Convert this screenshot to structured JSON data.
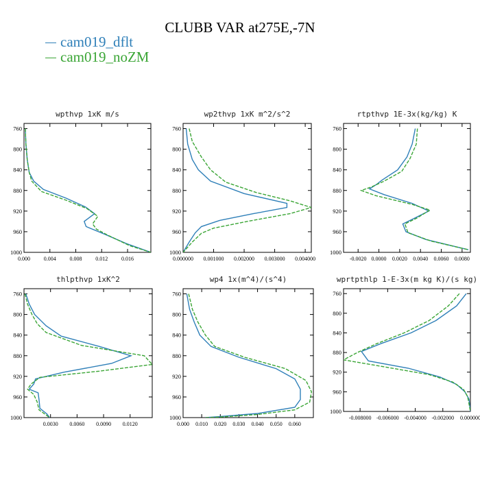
{
  "title": "CLUBB VAR at275E,-7N",
  "legend": [
    {
      "name": "cam019_dflt",
      "color": "#2e7fb8"
    },
    {
      "name": "cam019_noZM",
      "color": "#3aa535"
    }
  ],
  "chart_data": [
    {
      "type": "line",
      "title": "wpthvp  1xK m/s",
      "ylim": [
        1000,
        750
      ],
      "yticks": [
        760,
        800,
        840,
        880,
        920,
        960,
        1000
      ],
      "xlim": [
        0,
        0.0196
      ],
      "xticks": [
        0,
        0.004,
        0.008,
        0.012,
        0.016
      ],
      "xticklabels": [
        "0.000",
        "0.004",
        "0.008",
        "0.012",
        "0.016"
      ],
      "series": [
        {
          "name": "cam019_dflt",
          "points": [
            [
              0.0002,
              760
            ],
            [
              0.0003,
              790
            ],
            [
              0.0005,
              820
            ],
            [
              0.0008,
              845
            ],
            [
              0.0015,
              862
            ],
            [
              0.003,
              878
            ],
            [
              0.0065,
              895
            ],
            [
              0.0095,
              912
            ],
            [
              0.0109,
              925
            ],
            [
              0.0093,
              940
            ],
            [
              0.0096,
              950
            ],
            [
              0.0125,
              965
            ],
            [
              0.0158,
              983
            ],
            [
              0.0196,
              1000
            ]
          ]
        },
        {
          "name": "cam019_noZM",
          "points": [
            [
              0.0002,
              760
            ],
            [
              0.0003,
              790
            ],
            [
              0.0005,
              820
            ],
            [
              0.0008,
              845
            ],
            [
              0.0012,
              862
            ],
            [
              0.0027,
              882
            ],
            [
              0.0065,
              899
            ],
            [
              0.0097,
              915
            ],
            [
              0.0114,
              930
            ],
            [
              0.0106,
              945
            ],
            [
              0.0112,
              955
            ],
            [
              0.013,
              967
            ],
            [
              0.0163,
              987
            ],
            [
              0.0196,
              1000
            ]
          ]
        }
      ]
    },
    {
      "type": "line",
      "title": "wp2thvp  1xK m^2/s^2",
      "ylim": [
        1000,
        750
      ],
      "yticks": [
        760,
        800,
        840,
        880,
        920,
        960,
        1000
      ],
      "xlim": [
        0,
        0.0042
      ],
      "xticks": [
        0,
        0.001,
        0.002,
        0.003,
        0.004
      ],
      "xticklabels": [
        "0.000000",
        "0.001000",
        "0.002000",
        "0.003000",
        "0.004000"
      ],
      "series": [
        {
          "name": "cam019_dflt",
          "points": [
            [
              0.0001,
              760
            ],
            [
              0.00015,
              790
            ],
            [
              0.0003,
              820
            ],
            [
              0.0005,
              840
            ],
            [
              0.0009,
              862
            ],
            [
              0.002,
              886
            ],
            [
              0.0034,
              905
            ],
            [
              0.0034,
              913
            ],
            [
              0.0023,
              925
            ],
            [
              0.0012,
              938
            ],
            [
              0.0006,
              950
            ],
            [
              0.0004,
              962
            ],
            [
              0.0002,
              980
            ],
            [
              0,
              1000
            ]
          ]
        },
        {
          "name": "cam019_noZM",
          "points": [
            [
              0.0002,
              760
            ],
            [
              0.0003,
              785
            ],
            [
              0.0006,
              815
            ],
            [
              0.0009,
              840
            ],
            [
              0.0014,
              864
            ],
            [
              0.0024,
              884
            ],
            [
              0.0035,
              900
            ],
            [
              0.0042,
              913
            ],
            [
              0.0035,
              925
            ],
            [
              0.0021,
              940
            ],
            [
              0.001,
              953
            ],
            [
              0.0006,
              963
            ],
            [
              0.0003,
              980
            ],
            [
              0,
              1000
            ]
          ]
        }
      ]
    },
    {
      "type": "line",
      "title": "rtpthvp  1E-3x(kg/kg) K",
      "ylim": [
        1000,
        750
      ],
      "yticks": [
        760,
        800,
        840,
        880,
        920,
        960,
        1000
      ],
      "xlim": [
        -0.0034,
        0.0088
      ],
      "xticks": [
        -0.002,
        0,
        0.002,
        0.004,
        0.006,
        0.008
      ],
      "xticklabels": [
        "-0.0020",
        "0.0000",
        "0.0020",
        "0.0040",
        "0.0060",
        "0.0080"
      ],
      "series": [
        {
          "name": "cam019_dflt",
          "points": [
            [
              0.0035,
              760
            ],
            [
              0.0032,
              790
            ],
            [
              0.0027,
              815
            ],
            [
              0.0018,
              840
            ],
            [
              0.0003,
              860
            ],
            [
              -0.0002,
              868
            ],
            [
              -0.0009,
              877
            ],
            [
              0.0005,
              888
            ],
            [
              0.0032,
              905
            ],
            [
              0.0048,
              920
            ],
            [
              0.0033,
              935
            ],
            [
              0.0023,
              945
            ],
            [
              0.0026,
              960
            ],
            [
              0.0045,
              975
            ],
            [
              0.0086,
              995
            ]
          ]
        },
        {
          "name": "cam019_noZM",
          "points": [
            [
              0.0037,
              760
            ],
            [
              0.0036,
              790
            ],
            [
              0.003,
              818
            ],
            [
              0.0022,
              843
            ],
            [
              0.0005,
              862
            ],
            [
              -0.0007,
              873
            ],
            [
              -0.0017,
              880
            ],
            [
              -0.0003,
              890
            ],
            [
              0.0032,
              907
            ],
            [
              0.0049,
              918
            ],
            [
              0.0037,
              933
            ],
            [
              0.0025,
              945
            ],
            [
              0.0028,
              962
            ],
            [
              0.005,
              978
            ],
            [
              0.0086,
              995
            ]
          ]
        }
      ]
    },
    {
      "type": "line",
      "title": "thlpthvp  1xK^2",
      "ylim": [
        1000,
        750
      ],
      "yticks": [
        760,
        800,
        840,
        880,
        920,
        960,
        1000
      ],
      "xlim": [
        0,
        0.0145
      ],
      "xticks": [
        0.003,
        0.006,
        0.009,
        0.012
      ],
      "xticklabels": [
        "0.0030",
        "0.0060",
        "0.0090",
        "0.0120"
      ],
      "series": [
        {
          "name": "cam019_dflt",
          "points": [
            [
              0.0002,
              760
            ],
            [
              0.0006,
              780
            ],
            [
              0.0012,
              800
            ],
            [
              0.0025,
              822
            ],
            [
              0.0042,
              842
            ],
            [
              0.0085,
              862
            ],
            [
              0.0121,
              880
            ],
            [
              0.0099,
              895
            ],
            [
              0.0045,
              912
            ],
            [
              0.0013,
              925
            ],
            [
              0.0011,
              935
            ],
            [
              0.0006,
              945
            ],
            [
              0.0016,
              952
            ],
            [
              0.0017,
              965
            ],
            [
              0.0018,
              982
            ],
            [
              0.0026,
              993
            ],
            [
              0.0029,
              1000
            ]
          ]
        },
        {
          "name": "cam019_noZM",
          "points": [
            [
              0.0001,
              760
            ],
            [
              0.0004,
              780
            ],
            [
              0.0009,
              800
            ],
            [
              0.0015,
              818
            ],
            [
              0.0025,
              835
            ],
            [
              0.0065,
              860
            ],
            [
              0.0136,
              880
            ],
            [
              0.0145,
              897
            ],
            [
              0.0085,
              910
            ],
            [
              0.0018,
              922
            ],
            [
              0.0008,
              935
            ],
            [
              0.0004,
              945
            ],
            [
              0.0011,
              955
            ],
            [
              0.0015,
              970
            ],
            [
              0.0017,
              985
            ],
            [
              0.0029,
              1000
            ]
          ]
        }
      ]
    },
    {
      "type": "line",
      "title": "wp4  1x(m^4)/(s^4)",
      "ylim": [
        1000,
        750
      ],
      "yticks": [
        760,
        800,
        840,
        880,
        920,
        960,
        1000
      ],
      "xlim": [
        0,
        0.07
      ],
      "xticks": [
        0,
        0.01,
        0.02,
        0.03,
        0.04,
        0.05,
        0.06
      ],
      "xticklabels": [
        "0.000",
        "0.010",
        "0.020",
        "0.030",
        "0.040",
        "0.050",
        "0.060"
      ],
      "series": [
        {
          "name": "cam019_dflt",
          "points": [
            [
              0.002,
              760
            ],
            [
              0.0035,
              790
            ],
            [
              0.006,
              815
            ],
            [
              0.009,
              840
            ],
            [
              0.015,
              862
            ],
            [
              0.03,
              883
            ],
            [
              0.05,
              905
            ],
            [
              0.06,
              925
            ],
            [
              0.063,
              945
            ],
            [
              0.063,
              965
            ],
            [
              0.06,
              980
            ],
            [
              0.04,
              992
            ],
            [
              0.02,
              998
            ],
            [
              0.012,
              1000
            ]
          ]
        },
        {
          "name": "cam019_noZM",
          "points": [
            [
              0.003,
              760
            ],
            [
              0.005,
              790
            ],
            [
              0.008,
              815
            ],
            [
              0.012,
              840
            ],
            [
              0.017,
              862
            ],
            [
              0.033,
              883
            ],
            [
              0.055,
              905
            ],
            [
              0.066,
              928
            ],
            [
              0.069,
              950
            ],
            [
              0.068,
              970
            ],
            [
              0.06,
              985
            ],
            [
              0.04,
              994
            ],
            [
              0.02,
              999
            ],
            [
              0.012,
              1000
            ]
          ]
        }
      ]
    },
    {
      "type": "line",
      "title": "wprtpthlp  1-E-3x(m kg K)/(s kg)",
      "ylim": [
        1000,
        750
      ],
      "yticks": [
        760,
        800,
        840,
        880,
        920,
        960,
        1000
      ],
      "xlim": [
        -0.0092,
        0
      ],
      "xticks": [
        -0.008,
        -0.006,
        -0.004,
        -0.002,
        0
      ],
      "xticklabels": [
        "-0.008000",
        "-0.006000",
        "-0.004000",
        "-0.002000",
        "0.000000"
      ],
      "series": [
        {
          "name": "cam019_dflt",
          "points": [
            [
              -0.0003,
              760
            ],
            [
              -0.001,
              785
            ],
            [
              -0.0025,
              815
            ],
            [
              -0.0043,
              840
            ],
            [
              -0.0065,
              862
            ],
            [
              -0.0079,
              878
            ],
            [
              -0.0074,
              897
            ],
            [
              -0.0045,
              912
            ],
            [
              -0.0022,
              930
            ],
            [
              -0.001,
              945
            ],
            [
              -0.0004,
              960
            ],
            [
              -0.0001,
              975
            ],
            [
              0,
              1000
            ]
          ]
        },
        {
          "name": "cam019_noZM",
          "points": [
            [
              -0.0008,
              760
            ],
            [
              -0.0016,
              785
            ],
            [
              -0.003,
              815
            ],
            [
              -0.0048,
              840
            ],
            [
              -0.0068,
              862
            ],
            [
              -0.0082,
              880
            ],
            [
              -0.0092,
              895
            ],
            [
              -0.0065,
              908
            ],
            [
              -0.003,
              925
            ],
            [
              -0.0013,
              940
            ],
            [
              -0.0005,
              955
            ],
            [
              -0.0002,
              970
            ],
            [
              0,
              1000
            ]
          ]
        }
      ]
    }
  ]
}
